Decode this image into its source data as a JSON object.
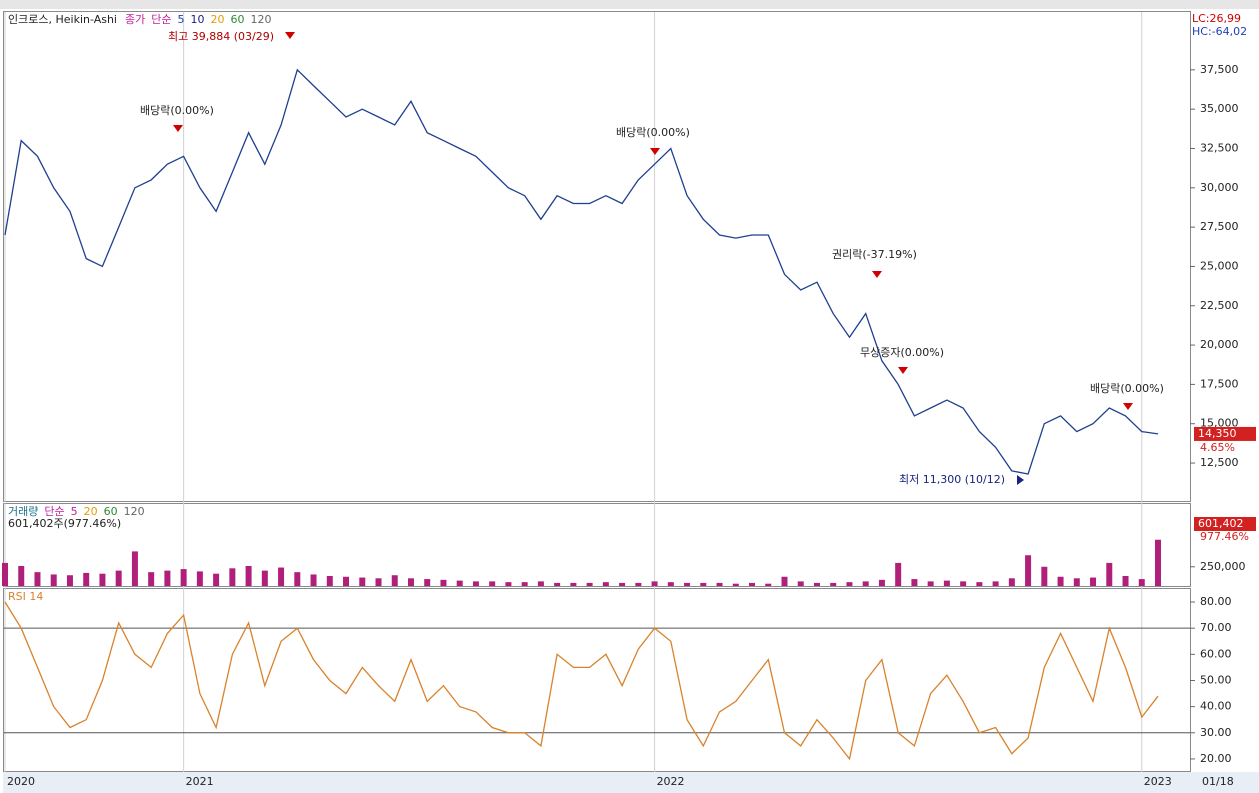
{
  "header": {
    "ticker_label": "인크로스, Heikin-Ashi"
  },
  "x_end_label": "01/18",
  "chart_data": [
    {
      "type": "line",
      "legend": [
        "종가",
        "단순",
        "5",
        "10",
        "20",
        "60",
        "120"
      ],
      "legend_colors": [
        "#c0209c",
        "#c0209c",
        "#1f3fbf",
        "#1a237e",
        "#e0a000",
        "#2e8b2e",
        "#666666"
      ],
      "lc_label": "LC:26,99",
      "hc_label": "HC:-64,02",
      "last_value_label": "14,350",
      "change_label": "4.65%",
      "annotations": [
        "최고 39,884 (03/29)",
        "배당락(0.00%)",
        "배당락(0.00%)",
        "권리락(-37.19%)",
        "무상증자(0.00%)",
        "배당락(0.00%)",
        "최저 11,300 (10/12)"
      ],
      "categories": [
        "2020",
        null,
        null,
        null,
        null,
        null,
        null,
        null,
        null,
        null,
        null,
        "2021",
        null,
        null,
        null,
        null,
        null,
        null,
        null,
        null,
        null,
        null,
        null,
        null,
        null,
        null,
        null,
        null,
        null,
        null,
        null,
        null,
        null,
        null,
        null,
        null,
        null,
        null,
        null,
        null,
        "2022",
        null,
        null,
        null,
        null,
        null,
        null,
        null,
        null,
        null,
        null,
        null,
        null,
        null,
        null,
        null,
        null,
        null,
        null,
        null,
        null,
        null,
        null,
        null,
        null,
        null,
        null,
        null,
        null,
        null,
        "2023",
        null
      ],
      "series": [
        {
          "name": "인크로스, Heikin-Ashi",
          "color": "#1f3f8f",
          "values": [
            27000,
            33000,
            32000,
            30000,
            28500,
            25500,
            25000,
            27500,
            30000,
            30500,
            31500,
            32000,
            30000,
            28500,
            31000,
            33500,
            31500,
            34000,
            37500,
            36500,
            35500,
            34500,
            35000,
            34500,
            34000,
            35500,
            33500,
            33000,
            32500,
            32000,
            31000,
            30000,
            29500,
            28000,
            29500,
            29000,
            29000,
            29500,
            29000,
            30500,
            31500,
            32500,
            29500,
            28000,
            27000,
            26800,
            27000,
            27000,
            24500,
            23500,
            24000,
            22000,
            20500,
            22000,
            19000,
            17500,
            15500,
            16000,
            16500,
            16000,
            14500,
            13500,
            12000,
            11800,
            15000,
            15500,
            14500,
            15000,
            16000,
            15500,
            14500,
            14350
          ]
        }
      ],
      "ylim": [
        10150,
        41050
      ],
      "yticks": [
        {
          "value": 12500,
          "label": "12,500"
        },
        {
          "value": 15000,
          "label": "15,000"
        },
        {
          "value": 17500,
          "label": "17,500"
        },
        {
          "value": 20000,
          "label": "20,000"
        },
        {
          "value": 22500,
          "label": "22,500"
        },
        {
          "value": 25000,
          "label": "25,000"
        },
        {
          "value": 27500,
          "label": "27,500"
        },
        {
          "value": 30000,
          "label": "30,000"
        },
        {
          "value": 32500,
          "label": "32,500"
        },
        {
          "value": 35000,
          "label": "35,000"
        },
        {
          "value": 37500,
          "label": "37,500"
        }
      ]
    },
    {
      "type": "bar",
      "legend": [
        "단순",
        "5",
        "20",
        "60",
        "120"
      ],
      "legend_colors": [
        "#c0209c",
        "#c0209c",
        "#e0a000",
        "#2e8b2e",
        "#666666"
      ],
      "current_label": "601,402주(977.46%)",
      "last_value_label": "601,402",
      "change_label": "977.46%",
      "series": [
        {
          "name": "거래량",
          "color": "#b0207a",
          "values": [
            300000,
            260000,
            180000,
            150000,
            140000,
            170000,
            160000,
            200000,
            450000,
            180000,
            200000,
            220000,
            190000,
            160000,
            230000,
            260000,
            200000,
            240000,
            180000,
            150000,
            130000,
            120000,
            110000,
            100000,
            140000,
            100000,
            90000,
            80000,
            70000,
            60000,
            60000,
            50000,
            50000,
            60000,
            40000,
            40000,
            40000,
            50000,
            40000,
            40000,
            60000,
            50000,
            40000,
            40000,
            40000,
            30000,
            40000,
            30000,
            120000,
            60000,
            40000,
            40000,
            50000,
            60000,
            80000,
            300000,
            90000,
            60000,
            70000,
            60000,
            50000,
            60000,
            100000,
            400000,
            250000,
            120000,
            100000,
            110000,
            300000,
            130000,
            90000,
            601402
          ]
        }
      ],
      "ylim": [
        0,
        1040000
      ],
      "yticks": [
        {
          "value": 250000,
          "label": "250,000"
        }
      ]
    },
    {
      "type": "line",
      "series": [
        {
          "name": "RSI 14",
          "color": "#d9822b",
          "values": [
            80,
            70,
            55,
            40,
            32,
            35,
            50,
            72,
            60,
            55,
            68,
            75,
            45,
            32,
            60,
            72,
            48,
            65,
            70,
            58,
            50,
            45,
            55,
            48,
            42,
            58,
            42,
            48,
            40,
            38,
            32,
            30,
            30,
            25,
            60,
            55,
            55,
            60,
            48,
            62,
            70,
            65,
            35,
            25,
            38,
            42,
            50,
            58,
            30,
            25,
            35,
            28,
            20,
            50,
            58,
            30,
            25,
            45,
            52,
            42,
            30,
            32,
            22,
            28,
            55,
            68,
            55,
            42,
            70,
            55,
            36,
            44
          ]
        }
      ],
      "thresholds": [
        30,
        70
      ],
      "ylim": [
        15,
        84.6
      ],
      "yticks": [
        {
          "value": 20,
          "label": "20.00"
        },
        {
          "value": 30,
          "label": "30.00"
        },
        {
          "value": 40,
          "label": "40.00"
        },
        {
          "value": 50,
          "label": "50.00"
        },
        {
          "value": 60,
          "label": "60.00"
        },
        {
          "value": 70,
          "label": "70.00"
        },
        {
          "value": 80,
          "label": "80.00"
        }
      ]
    }
  ]
}
